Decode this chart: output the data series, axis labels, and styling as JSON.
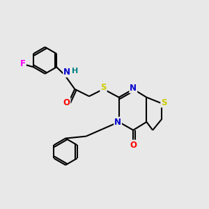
{
  "bg_color": "#e8e8e8",
  "bond_color": "#000000",
  "atom_colors": {
    "N": "#0000cc",
    "O": "#ff0000",
    "S": "#cccc00",
    "F": "#ff00ff",
    "H": "#008080",
    "C": "#000000"
  },
  "figsize": [
    3.0,
    3.0
  ],
  "dpi": 100
}
